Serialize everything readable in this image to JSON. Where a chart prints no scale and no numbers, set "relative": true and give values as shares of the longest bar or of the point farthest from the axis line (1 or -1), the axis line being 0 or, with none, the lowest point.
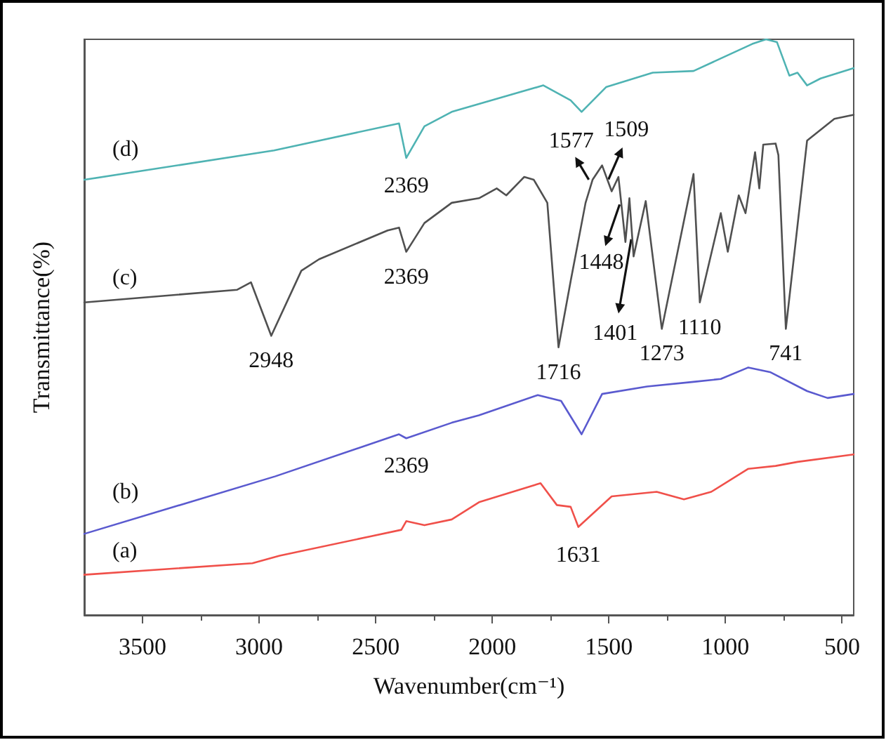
{
  "chart_data": {
    "type": "line",
    "xlabel": "Wavenumber(cm⁻¹)",
    "ylabel": "Transmittance(%)",
    "relative": true,
    "grid": false,
    "legend": false,
    "marker": "none",
    "line_style": "solid",
    "tick_labels": "x",
    "xlim": [
      3750,
      450
    ],
    "xticks": [
      3500,
      3000,
      2500,
      2000,
      1500,
      1000,
      500
    ],
    "series": [
      {
        "name": "(a)",
        "color": "#f0504a",
        "x": [
          3750,
          3029,
          2912,
          2390,
          2369,
          2291,
          2174,
          2057,
          1793,
          1723,
          1664,
          1631,
          1488,
          1295,
          1178,
          1061,
          902,
          785,
          691,
          450
        ],
        "values": [
          0.07,
          0.09,
          0.103,
          0.148,
          0.163,
          0.156,
          0.166,
          0.196,
          0.229,
          0.191,
          0.188,
          0.153,
          0.206,
          0.214,
          0.201,
          0.214,
          0.254,
          0.259,
          0.266,
          0.279
        ]
      },
      {
        "name": "(b)",
        "color": "#5a5acf",
        "x": [
          3750,
          2930,
          2400,
          2369,
          2174,
          2057,
          1805,
          1705,
          1617,
          1529,
          1336,
          1137,
          1020,
          902,
          809,
          650,
          562,
          450
        ],
        "values": [
          0.141,
          0.241,
          0.314,
          0.307,
          0.334,
          0.347,
          0.382,
          0.372,
          0.314,
          0.384,
          0.397,
          0.405,
          0.41,
          0.43,
          0.422,
          0.389,
          0.377,
          0.384
        ]
      },
      {
        "name": "(c)",
        "color": "#505050",
        "x": [
          3750,
          3094,
          3035,
          2948,
          2819,
          2743,
          2449,
          2400,
          2369,
          2291,
          2174,
          2057,
          1981,
          1940,
          1863,
          1822,
          1764,
          1716,
          1664,
          1600,
          1570,
          1529,
          1488,
          1459,
          1429,
          1412,
          1394,
          1342,
          1273,
          1137,
          1110,
          1020,
          990,
          943,
          914,
          873,
          855,
          838,
          785,
          773,
          741,
          650,
          533,
          450
        ],
        "values": [
          0.543,
          0.565,
          0.578,
          0.485,
          0.598,
          0.618,
          0.668,
          0.673,
          0.631,
          0.681,
          0.716,
          0.724,
          0.741,
          0.729,
          0.761,
          0.756,
          0.716,
          0.465,
          0.58,
          0.716,
          0.756,
          0.781,
          0.736,
          0.761,
          0.648,
          0.724,
          0.623,
          0.719,
          0.497,
          0.766,
          0.543,
          0.698,
          0.631,
          0.729,
          0.698,
          0.804,
          0.741,
          0.817,
          0.819,
          0.799,
          0.497,
          0.824,
          0.862,
          0.869
        ]
      },
      {
        "name": "(d)",
        "color": "#4fb3b3",
        "x": [
          3750,
          2936,
          2400,
          2369,
          2291,
          2174,
          1781,
          1664,
          1617,
          1512,
          1312,
          1137,
          885,
          826,
          779,
          726,
          691,
          650,
          592,
          450
        ],
        "values": [
          0.756,
          0.807,
          0.854,
          0.794,
          0.849,
          0.874,
          0.92,
          0.894,
          0.874,
          0.917,
          0.942,
          0.945,
          0.992,
          1.0,
          0.995,
          0.937,
          0.942,
          0.92,
          0.932,
          0.95
        ]
      }
    ],
    "annotations": [
      {
        "text": "2369",
        "x": 2369,
        "y": 0.794
      },
      {
        "text": "2369",
        "x": 2369,
        "y": 0.631
      },
      {
        "text": "2369",
        "x": 2369,
        "y": 0.307
      },
      {
        "text": "2948",
        "x": 2948,
        "y": 0.485
      },
      {
        "text": "1716",
        "x": 1716,
        "y": 0.465
      },
      {
        "text": "1577",
        "x": 1577,
        "y": 0.75
      },
      {
        "text": "1509",
        "x": 1509,
        "y": 0.75
      },
      {
        "text": "1448",
        "x": 1448,
        "y": 0.72
      },
      {
        "text": "1401",
        "x": 1401,
        "y": 0.66
      },
      {
        "text": "1273",
        "x": 1273,
        "y": 0.497
      },
      {
        "text": "1110",
        "x": 1110,
        "y": 0.543
      },
      {
        "text": "741",
        "x": 741,
        "y": 0.497
      },
      {
        "text": "1631",
        "x": 1631,
        "y": 0.153
      }
    ]
  }
}
